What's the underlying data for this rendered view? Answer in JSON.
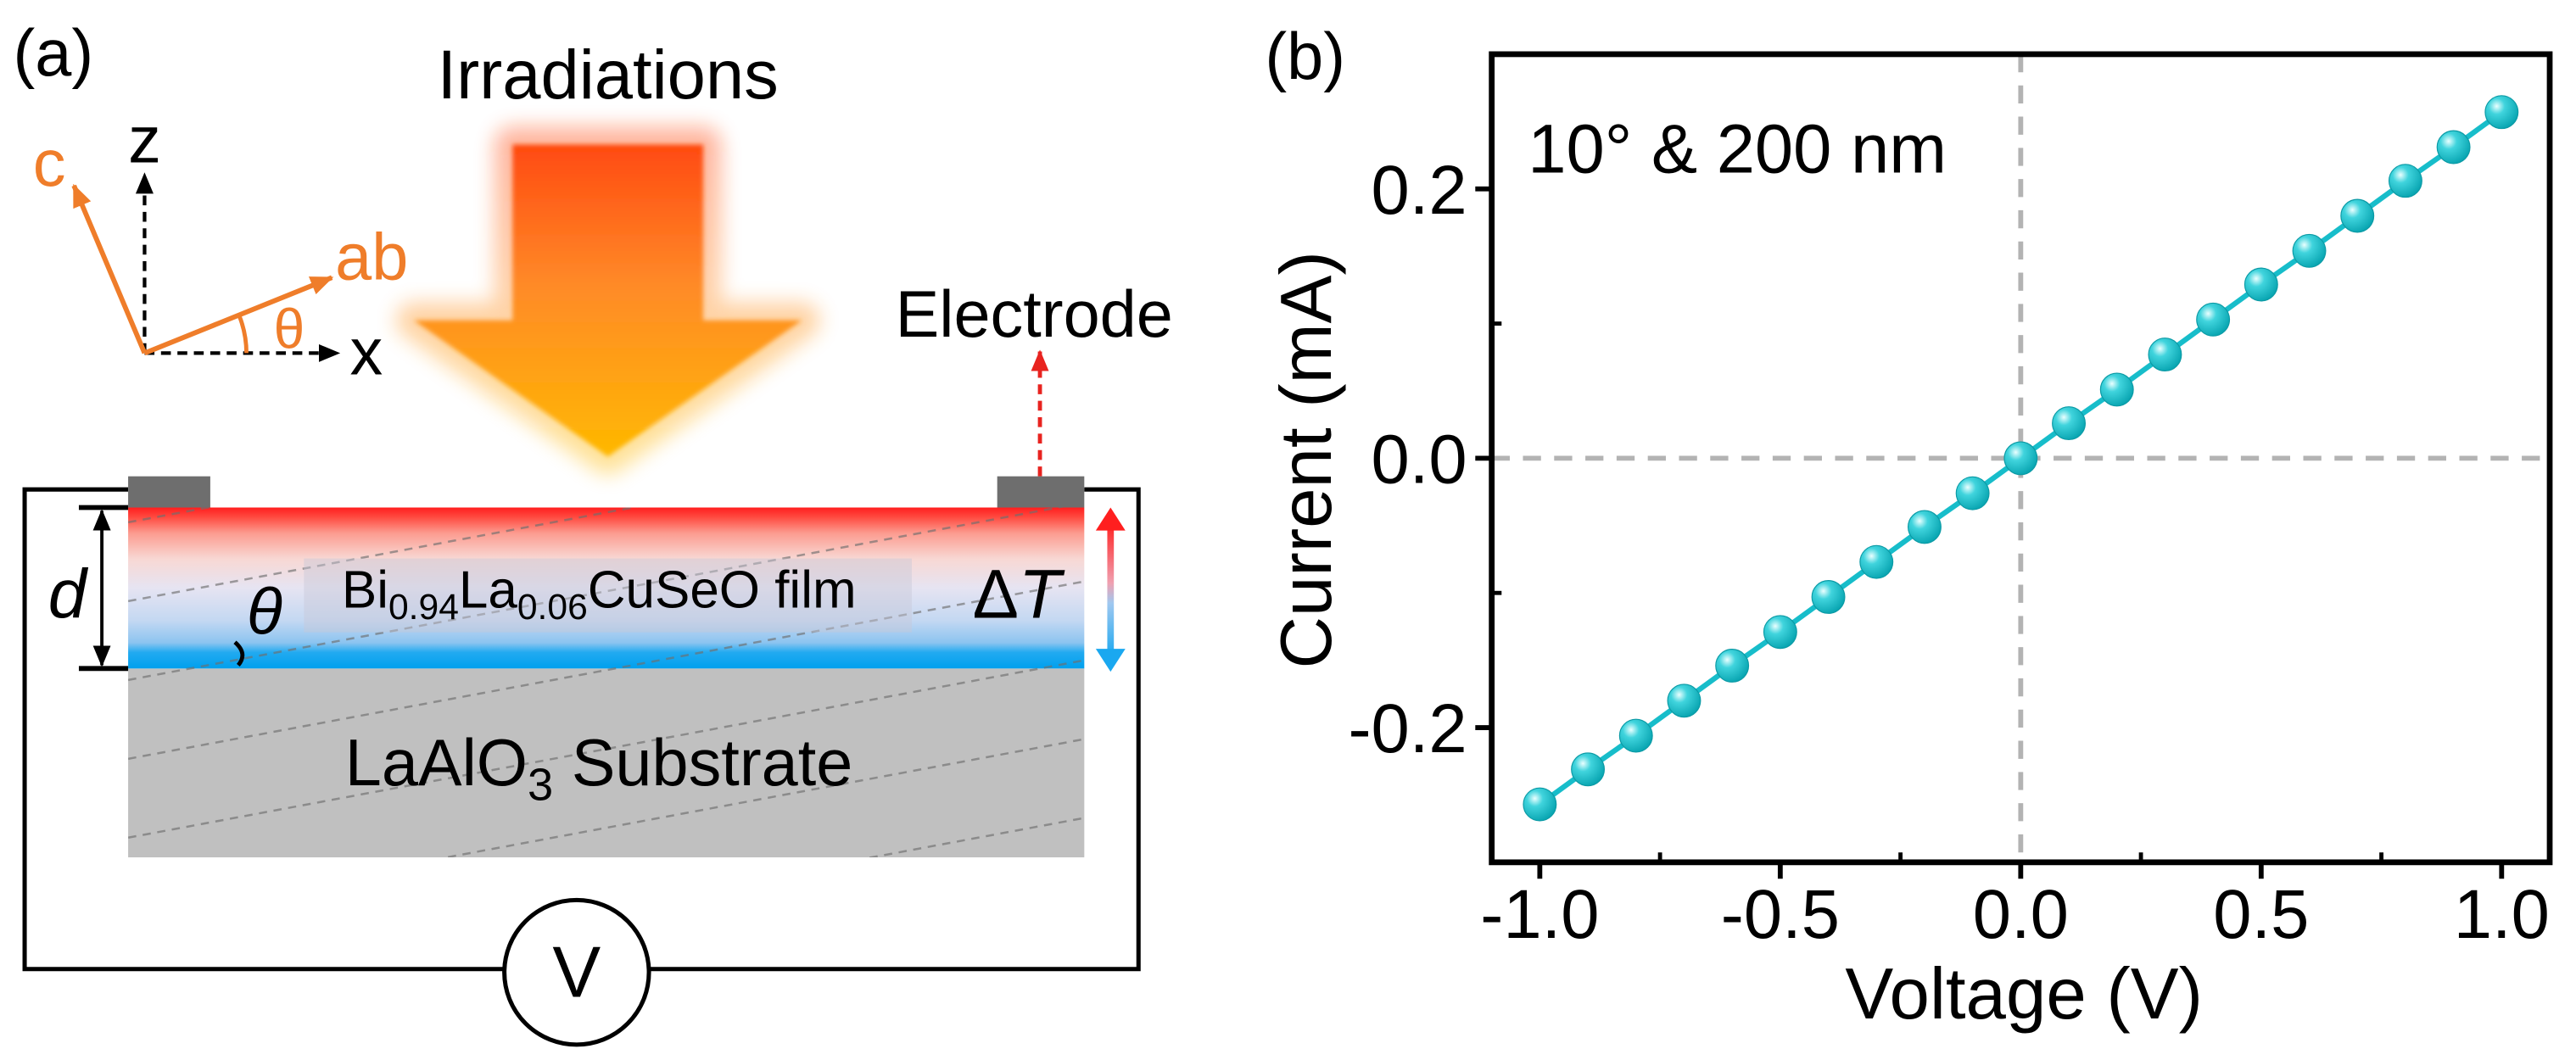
{
  "panel_a": {
    "label": "(a)",
    "irradiation_label": "Irradiations",
    "axes": {
      "z": "z",
      "x": "x",
      "c": "c",
      "ab": "ab",
      "theta": "θ"
    },
    "electrode_label": "Electrode",
    "thickness_label": "d",
    "tilt_label": "θ",
    "delta_t": {
      "delta": "Δ",
      "t": "T"
    },
    "film_label": {
      "p1": "Bi",
      "s1": "0.94",
      "p2": "La",
      "s2": "0.06",
      "p3": "CuSeO film"
    },
    "substrate_label": {
      "p1": "LaAlO",
      "s1": "3",
      "p2": " Substrate"
    },
    "voltmeter_label": "V"
  },
  "colors": {
    "axis_orange": "#ef7d2a",
    "electrode_arrow": "#e8231f",
    "arrow_top": "#ff4a10",
    "arrow_bottom": "#ffb800",
    "film_hot": "#ff1e1e",
    "film_cold": "#00a0ee",
    "substrate": "#c0c0c0",
    "electrode": "#6e6e6e",
    "series": "#17bdca",
    "reference_line": "#b3b3b3"
  },
  "chart_data": {
    "type": "line",
    "panel_label": "(b)",
    "annotation": "10° & 200 nm",
    "xlabel": "Voltage (V)",
    "ylabel": "Current (mA)",
    "xlim": [
      -1.1,
      1.1
    ],
    "ylim": [
      -0.3,
      0.3
    ],
    "grid": false,
    "x_ticks": [
      {
        "value": -1.0,
        "label": "-1.0"
      },
      {
        "value": -0.5,
        "label": "-0.5"
      },
      {
        "value": 0.0,
        "label": "0.0"
      },
      {
        "value": 0.5,
        "label": "0.5"
      },
      {
        "value": 1.0,
        "label": "1.0"
      }
    ],
    "y_ticks": [
      {
        "value": 0.2,
        "label": "0.2"
      },
      {
        "value": 0.0,
        "label": "0.0"
      },
      {
        "value": -0.2,
        "label": "-0.2"
      }
    ],
    "x_minor_ticks": [
      -0.75,
      -0.25,
      0.25,
      0.75
    ],
    "y_minor_ticks": [
      -0.1,
      0.1
    ],
    "reference_lines": {
      "x": 0,
      "y": 0
    },
    "series": [
      {
        "color": "#17bdca",
        "x": [
          -1.0,
          -0.9,
          -0.8,
          -0.7,
          -0.6,
          -0.5,
          -0.4,
          -0.3,
          -0.2,
          -0.1,
          0.0,
          0.1,
          0.2,
          0.3,
          0.4,
          0.5,
          0.6,
          0.7,
          0.8,
          0.9,
          1.0
        ],
        "y": [
          -0.257,
          -0.231,
          -0.206,
          -0.18,
          -0.154,
          -0.129,
          -0.103,
          -0.077,
          -0.051,
          -0.026,
          0.0,
          0.026,
          0.051,
          0.077,
          0.103,
          0.129,
          0.154,
          0.18,
          0.206,
          0.231,
          0.257
        ]
      }
    ]
  }
}
